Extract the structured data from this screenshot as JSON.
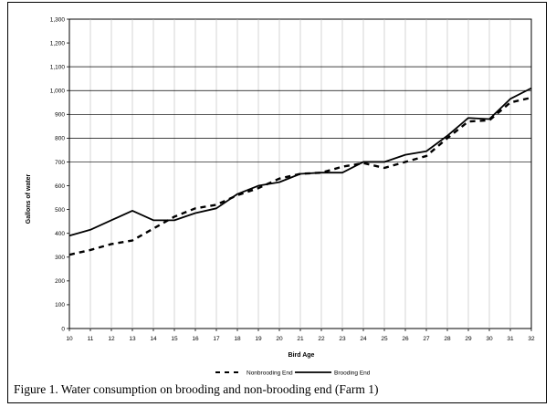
{
  "chart_data": {
    "type": "line",
    "title": "",
    "xlabel": "Bird Age",
    "ylabel": "Gallons of water",
    "ylim": [
      0,
      1300
    ],
    "xlim": [
      10,
      32
    ],
    "y_ticks": [
      "0",
      "100",
      "200",
      "300",
      "400",
      "500",
      "600",
      "700",
      "800",
      "900",
      "1,000",
      "1,100",
      "1,200",
      "1,300"
    ],
    "x_ticks": [
      "10",
      "11",
      "12",
      "13",
      "14",
      "15",
      "16",
      "17",
      "18",
      "19",
      "20",
      "21",
      "22",
      "23",
      "24",
      "25",
      "26",
      "27",
      "28",
      "29",
      "30",
      "31",
      "32"
    ],
    "grid": "horizontal lines at 700, 800, 900, 1,000 and 1,100; vertical grid lines at every x tick",
    "legend_position": "bottom",
    "x": [
      10,
      11,
      12,
      13,
      14,
      15,
      16,
      17,
      18,
      19,
      20,
      21,
      22,
      23,
      24,
      25,
      26,
      27,
      28,
      29,
      30,
      31,
      32
    ],
    "series": [
      {
        "name": "Nonbrooding End",
        "style": "dashed",
        "color": "#000000",
        "values": [
          310,
          330,
          355,
          370,
          420,
          470,
          505,
          520,
          560,
          590,
          630,
          650,
          655,
          680,
          695,
          675,
          700,
          725,
          800,
          870,
          875,
          950,
          970
        ]
      },
      {
        "name": "Brooding End",
        "style": "solid",
        "color": "#000000",
        "values": [
          390,
          415,
          455,
          495,
          455,
          455,
          485,
          505,
          565,
          600,
          615,
          650,
          655,
          655,
          700,
          700,
          730,
          745,
          810,
          885,
          880,
          965,
          1010
        ]
      }
    ]
  },
  "caption": "Figure 1.  Water consumption on brooding and non-brooding end (Farm 1)"
}
